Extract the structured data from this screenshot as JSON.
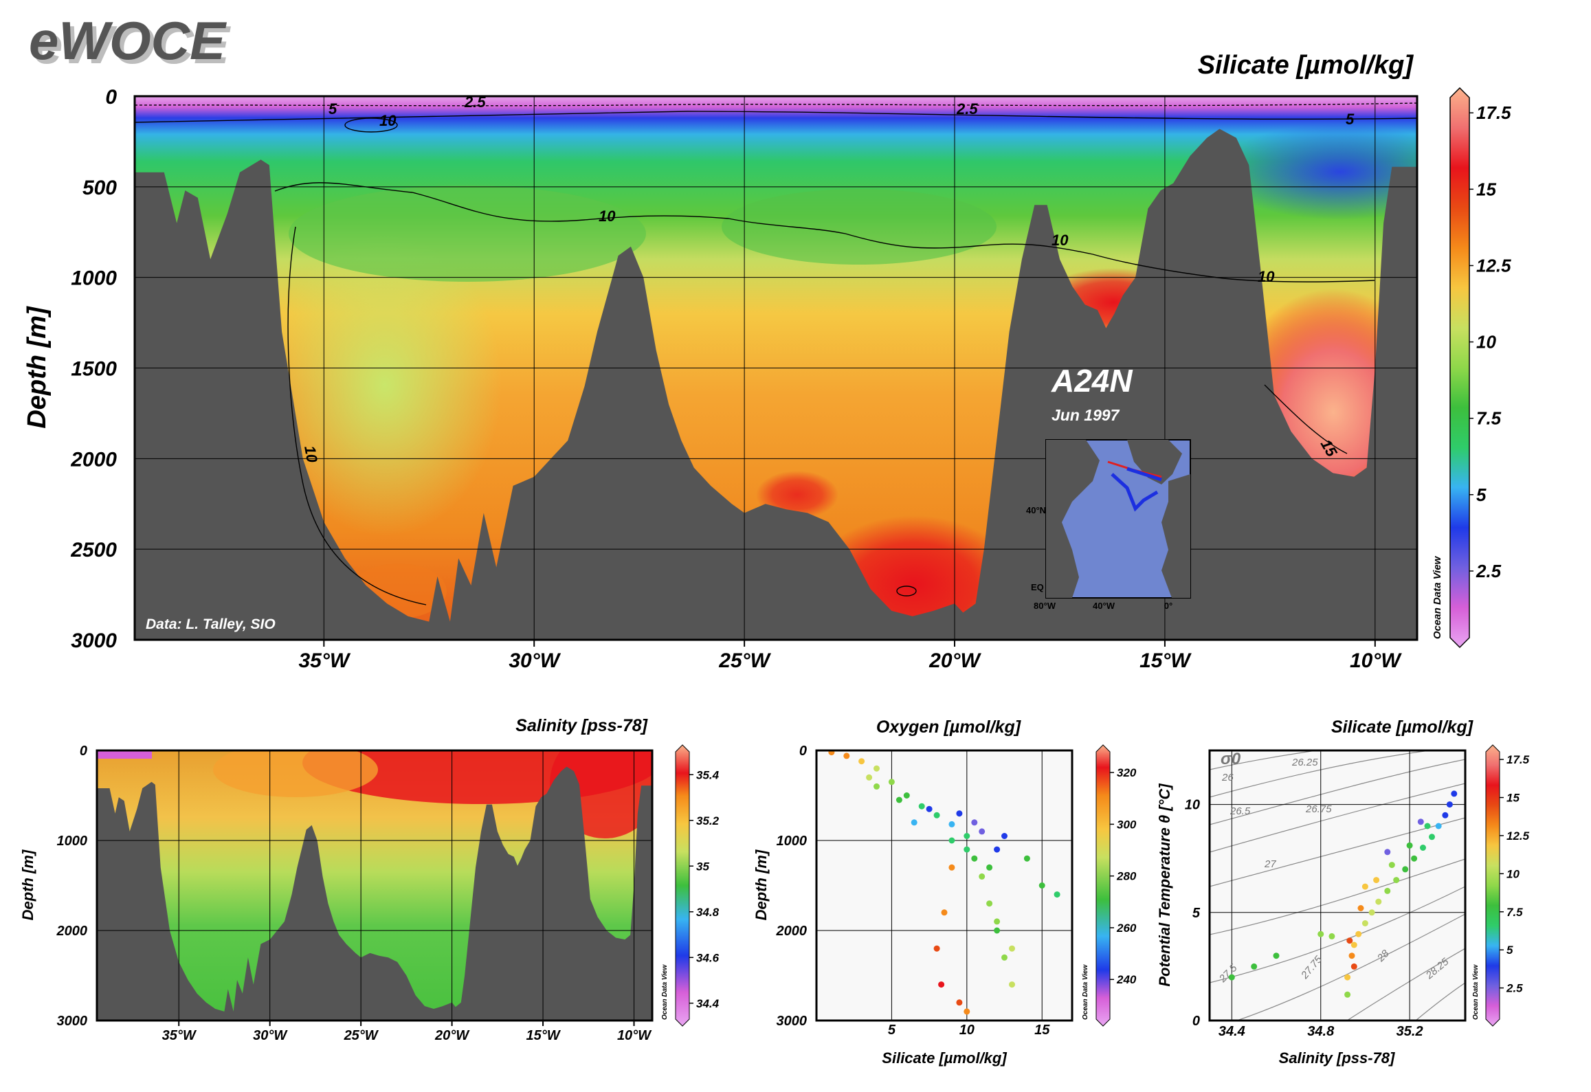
{
  "header": {
    "logo": "eWOCE"
  },
  "colors": {
    "seafloor": "#555555",
    "silicate_scale": [
      "#e9a6f2",
      "#d65fd8",
      "#7060e0",
      "#1f3ae8",
      "#38b4f2",
      "#2fcc6a",
      "#3dbf3d",
      "#8fd84a",
      "#c8e060",
      "#f7c640",
      "#f58a1a",
      "#e84a14",
      "#e8141c",
      "#f07070",
      "#fbb38c"
    ]
  },
  "chart_data": [
    {
      "id": "main-silicate-section",
      "type": "heatmap",
      "title": "Silicate [µmol/kg]",
      "ylabel": "Depth [m]",
      "xticks": [
        "35°W",
        "30°W",
        "25°W",
        "20°W",
        "15°W",
        "10°W"
      ],
      "xtick_values": [
        -35,
        -30,
        -25,
        -20,
        -15,
        -10
      ],
      "xlim": [
        -39.5,
        -9
      ],
      "yticks": [
        "0",
        "500",
        "1000",
        "1500",
        "2000",
        "2500",
        "3000"
      ],
      "ytick_values": [
        0,
        500,
        1000,
        1500,
        2000,
        2500,
        3000
      ],
      "ylim": [
        0,
        3000
      ],
      "colorbar": {
        "ticks": [
          "17.5",
          "15",
          "12.5",
          "10",
          "7.5",
          "5",
          "2.5"
        ],
        "tick_values": [
          17.5,
          15,
          12.5,
          10,
          7.5,
          5,
          2.5
        ],
        "range": [
          0,
          18
        ]
      },
      "contour_labels": [
        "2.5",
        "2.5",
        "5",
        "5",
        "10",
        "10",
        "10",
        "10",
        "10",
        "15"
      ],
      "section_label": "A24N",
      "date_label": "Jun 1997",
      "credit": "Data: L. Talley, SIO",
      "watermark": "Ocean Data View",
      "inset_map": {
        "lat_labels": [
          "40°N",
          "EQ"
        ],
        "lon_labels": [
          "80°W",
          "40°W",
          "0°"
        ]
      },
      "bathymetry": [
        [
          -39.5,
          420
        ],
        [
          -38.8,
          420
        ],
        [
          -38.5,
          700
        ],
        [
          -38.3,
          520
        ],
        [
          -38.0,
          560
        ],
        [
          -37.7,
          900
        ],
        [
          -37.3,
          650
        ],
        [
          -37.0,
          420
        ],
        [
          -36.5,
          350
        ],
        [
          -36.3,
          380
        ],
        [
          -36.0,
          1300
        ],
        [
          -35.5,
          2000
        ],
        [
          -35.0,
          2350
        ],
        [
          -34.5,
          2550
        ],
        [
          -34.0,
          2700
        ],
        [
          -33.5,
          2800
        ],
        [
          -33.0,
          2870
        ],
        [
          -32.5,
          2900
        ],
        [
          -32.3,
          2650
        ],
        [
          -32.0,
          2900
        ],
        [
          -31.8,
          2550
        ],
        [
          -31.5,
          2700
        ],
        [
          -31.2,
          2300
        ],
        [
          -30.9,
          2600
        ],
        [
          -30.5,
          2150
        ],
        [
          -30.0,
          2100
        ],
        [
          -29.6,
          2000
        ],
        [
          -29.2,
          1900
        ],
        [
          -28.8,
          1600
        ],
        [
          -28.5,
          1300
        ],
        [
          -28.2,
          1050
        ],
        [
          -28.0,
          880
        ],
        [
          -27.7,
          830
        ],
        [
          -27.4,
          1000
        ],
        [
          -27.1,
          1400
        ],
        [
          -26.8,
          1700
        ],
        [
          -26.5,
          1900
        ],
        [
          -26.2,
          2050
        ],
        [
          -25.8,
          2150
        ],
        [
          -25.3,
          2250
        ],
        [
          -25.0,
          2300
        ],
        [
          -24.5,
          2250
        ],
        [
          -24.0,
          2280
        ],
        [
          -23.5,
          2300
        ],
        [
          -23.0,
          2350
        ],
        [
          -22.5,
          2500
        ],
        [
          -22.0,
          2720
        ],
        [
          -21.5,
          2840
        ],
        [
          -21.0,
          2870
        ],
        [
          -20.5,
          2840
        ],
        [
          -20.0,
          2800
        ],
        [
          -19.8,
          2850
        ],
        [
          -19.5,
          2800
        ],
        [
          -19.3,
          2500
        ],
        [
          -19.0,
          1900
        ],
        [
          -18.7,
          1300
        ],
        [
          -18.4,
          900
        ],
        [
          -18.1,
          600
        ],
        [
          -17.8,
          600
        ],
        [
          -17.5,
          900
        ],
        [
          -17.2,
          1050
        ],
        [
          -16.9,
          1150
        ],
        [
          -16.6,
          1180
        ],
        [
          -16.4,
          1280
        ],
        [
          -16.2,
          1200
        ],
        [
          -16.0,
          1100
        ],
        [
          -15.7,
          1000
        ],
        [
          -15.4,
          620
        ],
        [
          -15.1,
          520
        ],
        [
          -14.8,
          480
        ],
        [
          -14.4,
          330
        ],
        [
          -14.0,
          230
        ],
        [
          -13.7,
          180
        ],
        [
          -13.3,
          230
        ],
        [
          -13.0,
          380
        ],
        [
          -12.7,
          1000
        ],
        [
          -12.4,
          1650
        ],
        [
          -12.0,
          1850
        ],
        [
          -11.5,
          2000
        ],
        [
          -11.0,
          2080
        ],
        [
          -10.5,
          2100
        ],
        [
          -10.2,
          2050
        ],
        [
          -10.0,
          1500
        ],
        [
          -9.8,
          700
        ],
        [
          -9.6,
          390
        ],
        [
          -9.0,
          390
        ]
      ]
    },
    {
      "id": "salinity-section",
      "type": "heatmap",
      "title": "Salinity [pss-78]",
      "ylabel": "Depth [m]",
      "xticks": [
        "35°W",
        "30°W",
        "25°W",
        "20°W",
        "15°W",
        "10°W"
      ],
      "xtick_values": [
        -35,
        -30,
        -25,
        -20,
        -15,
        -10
      ],
      "xlim": [
        -39.5,
        -9
      ],
      "yticks": [
        "0",
        "1000",
        "2000",
        "3000"
      ],
      "ytick_values": [
        0,
        1000,
        2000,
        3000
      ],
      "ylim": [
        0,
        3000
      ],
      "colorbar": {
        "ticks": [
          "35.4",
          "35.2",
          "35",
          "34.8",
          "34.6",
          "34.4"
        ],
        "tick_values": [
          35.4,
          35.2,
          35,
          34.8,
          34.6,
          34.4
        ],
        "range": [
          34.3,
          35.5
        ]
      },
      "watermark": "Ocean Data View"
    },
    {
      "id": "oxygen-scatter",
      "type": "scatter",
      "title": "Oxygen [µmol/kg]",
      "xlabel": "Silicate [µmol/kg]",
      "ylabel": "Depth [m]",
      "xticks": [
        "5",
        "10",
        "15"
      ],
      "xtick_values": [
        5,
        10,
        15
      ],
      "xlim": [
        0,
        17
      ],
      "yticks": [
        "0",
        "1000",
        "2000",
        "3000"
      ],
      "ytick_values": [
        0,
        1000,
        2000,
        3000
      ],
      "ylim": [
        0,
        3000
      ],
      "colorbar": {
        "ticks": [
          "320",
          "300",
          "280",
          "260",
          "240"
        ],
        "tick_values": [
          320,
          300,
          280,
          260,
          240
        ],
        "range": [
          222,
          328
        ]
      },
      "watermark": "Ocean Data View",
      "sample_points": [
        [
          1,
          20,
          300
        ],
        [
          2,
          60,
          295
        ],
        [
          3,
          120,
          290
        ],
        [
          4,
          200,
          285
        ],
        [
          5,
          350,
          275
        ],
        [
          6,
          500,
          270
        ],
        [
          7,
          620,
          262
        ],
        [
          8,
          720,
          258
        ],
        [
          9,
          820,
          255
        ],
        [
          10,
          950,
          262
        ],
        [
          10.5,
          1200,
          270
        ],
        [
          11,
          1400,
          275
        ],
        [
          11.5,
          1700,
          272
        ],
        [
          12,
          2000,
          270
        ],
        [
          12.5,
          2300,
          275
        ],
        [
          13,
          2600,
          285
        ],
        [
          14,
          1200,
          268
        ],
        [
          15,
          1500,
          265
        ],
        [
          16,
          1600,
          258
        ],
        [
          9,
          1300,
          295
        ],
        [
          8.5,
          1800,
          300
        ],
        [
          8,
          2200,
          305
        ],
        [
          8.3,
          2600,
          310
        ],
        [
          9.5,
          2800,
          305
        ],
        [
          10,
          2900,
          300
        ],
        [
          6.5,
          800,
          250
        ],
        [
          7.5,
          650,
          248
        ],
        [
          9.5,
          700,
          245
        ],
        [
          11,
          900,
          240
        ],
        [
          10.5,
          800,
          238
        ],
        [
          12,
          1100,
          245
        ],
        [
          12.5,
          950,
          242
        ],
        [
          4,
          400,
          278
        ],
        [
          3.5,
          300,
          282
        ],
        [
          5.5,
          550,
          268
        ],
        [
          9,
          1000,
          258
        ],
        [
          10,
          1100,
          262
        ],
        [
          11.5,
          1300,
          270
        ],
        [
          12,
          1900,
          275
        ],
        [
          13,
          2200,
          283
        ]
      ]
    },
    {
      "id": "theta-salinity-scatter",
      "type": "scatter",
      "title": "Silicate [µmol/kg]",
      "xlabel": "Salinity [pss-78]",
      "ylabel": "Potential Temperature θ [°C]",
      "xticks": [
        "34.4",
        "34.8",
        "35.2"
      ],
      "xtick_values": [
        34.4,
        34.8,
        35.2
      ],
      "xlim": [
        34.3,
        35.45
      ],
      "yticks": [
        "0",
        "5",
        "10"
      ],
      "ytick_values": [
        0,
        5,
        10
      ],
      "ylim": [
        0,
        12.5
      ],
      "density_labels": [
        "σ0",
        "26",
        "26.25",
        "26.5",
        "26.75",
        "27",
        "27.5",
        "27.75",
        "28",
        "28.25"
      ],
      "colorbar": {
        "ticks": [
          "17.5",
          "15",
          "12.5",
          "10",
          "7.5",
          "5",
          "2.5"
        ],
        "tick_values": [
          17.5,
          15,
          12.5,
          10,
          7.5,
          5,
          2.5
        ],
        "range": [
          0,
          18
        ]
      },
      "watermark": "Ocean Data View",
      "sample_points": [
        [
          34.92,
          1.2,
          9
        ],
        [
          34.92,
          2.0,
          11
        ],
        [
          34.95,
          2.5,
          14
        ],
        [
          34.94,
          3.0,
          13
        ],
        [
          34.95,
          3.5,
          12
        ],
        [
          34.97,
          4.0,
          11
        ],
        [
          35.0,
          4.5,
          10.5
        ],
        [
          35.03,
          5.0,
          10
        ],
        [
          35.06,
          5.5,
          10
        ],
        [
          35.1,
          6.0,
          9
        ],
        [
          35.14,
          6.5,
          8.5
        ],
        [
          35.18,
          7.0,
          8
        ],
        [
          35.22,
          7.5,
          7.5
        ],
        [
          35.26,
          8.0,
          7
        ],
        [
          35.3,
          8.5,
          6
        ],
        [
          35.33,
          9.0,
          5
        ],
        [
          35.36,
          9.5,
          4
        ],
        [
          35.38,
          10.0,
          4
        ],
        [
          35.4,
          10.5,
          3.5
        ],
        [
          35.25,
          9.2,
          2.5
        ],
        [
          35.1,
          7.8,
          3
        ],
        [
          35.0,
          6.2,
          12
        ],
        [
          34.98,
          5.2,
          13
        ],
        [
          34.93,
          3.7,
          14
        ],
        [
          34.85,
          3.9,
          9
        ],
        [
          34.8,
          4.0,
          8.5
        ],
        [
          34.6,
          3.0,
          8
        ],
        [
          34.5,
          2.5,
          8
        ],
        [
          34.4,
          2.0,
          7.5
        ],
        [
          35.05,
          6.5,
          11
        ],
        [
          35.12,
          7.2,
          9.5
        ],
        [
          35.2,
          8.1,
          8
        ],
        [
          35.28,
          9.0,
          6.5
        ]
      ]
    }
  ]
}
